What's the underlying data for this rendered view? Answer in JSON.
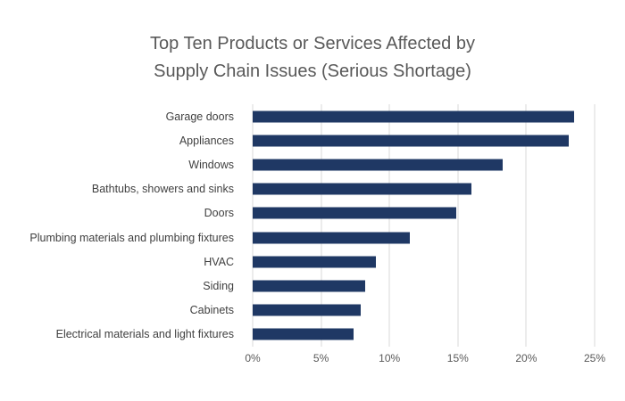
{
  "chart_data": {
    "type": "bar",
    "orientation": "horizontal",
    "title": "Top Ten Products or Services Affected by Supply Chain Issues (Serious Shortage)",
    "title_lines": [
      "Top Ten Products or Services Affected by",
      "Supply Chain Issues (Serious Shortage)"
    ],
    "categories": [
      "Garage doors",
      "Appliances",
      "Windows",
      "Bathtubs, showers and sinks",
      "Doors",
      "Plumbing materials and plumbing fixtures",
      "HVAC",
      "Siding",
      "Cabinets",
      "Electrical materials and light fixtures"
    ],
    "values": [
      23.5,
      23.1,
      18.3,
      16.0,
      14.9,
      11.5,
      9.0,
      8.2,
      7.9,
      7.4
    ],
    "value_unit": "%",
    "xlim": [
      0,
      25
    ],
    "x_ticks": [
      "0%",
      "5%",
      "10%",
      "15%",
      "20%",
      "25%"
    ],
    "grid": true,
    "legend": "none",
    "colors": {
      "bar": "#1f3864",
      "title_text": "#595959",
      "category_text": "#404040",
      "tick_text": "#595959",
      "gridline": "#d9d9d9",
      "background": "#ffffff"
    }
  }
}
